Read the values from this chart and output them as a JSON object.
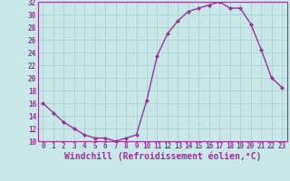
{
  "x": [
    0,
    1,
    2,
    3,
    4,
    5,
    6,
    7,
    8,
    9,
    10,
    11,
    12,
    13,
    14,
    15,
    16,
    17,
    18,
    19,
    20,
    21,
    22,
    23
  ],
  "y": [
    16,
    14.5,
    13,
    12,
    11,
    10.5,
    10.5,
    10,
    10.5,
    11,
    16.5,
    23.5,
    27,
    29,
    30.5,
    31,
    31.5,
    32,
    31,
    31,
    28.5,
    24.5,
    20,
    18.5
  ],
  "line_color": "#993399",
  "marker_color": "#993399",
  "bg_color": "#c8e8e8",
  "grid_color": "#aacccc",
  "xlabel": "Windchill (Refroidissement éolien,°C)",
  "xlabel_color": "#993399",
  "ylim": [
    10,
    32
  ],
  "xlim_min": -0.5,
  "xlim_max": 23.5,
  "yticks": [
    10,
    12,
    14,
    16,
    18,
    20,
    22,
    24,
    26,
    28,
    30,
    32
  ],
  "xticks": [
    0,
    1,
    2,
    3,
    4,
    5,
    6,
    7,
    8,
    9,
    10,
    11,
    12,
    13,
    14,
    15,
    16,
    17,
    18,
    19,
    20,
    21,
    22,
    23
  ],
  "tick_color": "#993399",
  "tick_fontsize": 5.5,
  "xlabel_fontsize": 7,
  "spine_color": "#993399",
  "line_width": 1.0,
  "marker_size": 2.2
}
